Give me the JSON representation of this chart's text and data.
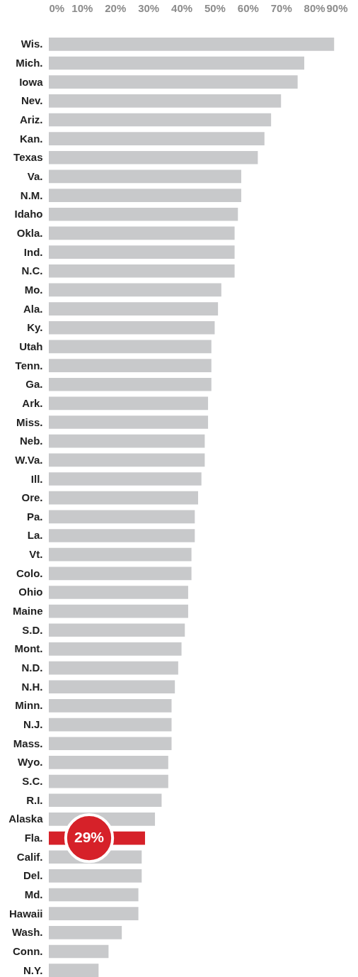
{
  "chart_data": {
    "type": "bar",
    "orientation": "horizontal",
    "categories": [
      "Wis.",
      "Mich.",
      "Iowa",
      "Nev.",
      "Ariz.",
      "Kan.",
      "Texas",
      "Va.",
      "N.M.",
      "Idaho",
      "Okla.",
      "Ind.",
      "N.C.",
      "Mo.",
      "Ala.",
      "Ky.",
      "Utah",
      "Tenn.",
      "Ga.",
      "Ark.",
      "Miss.",
      "Neb.",
      "W.Va.",
      "Ill.",
      "Ore.",
      "Pa.",
      "La.",
      "Vt.",
      "Colo.",
      "Ohio",
      "Maine",
      "S.D.",
      "Mont.",
      "N.D.",
      "N.H.",
      "Minn.",
      "N.J.",
      "Mass.",
      "Wyo.",
      "S.C.",
      "R.I.",
      "Alaska",
      "Fla.",
      "Calif.",
      "Del.",
      "Md.",
      "Hawaii",
      "Wash.",
      "Conn.",
      "N.Y."
    ],
    "values": [
      86,
      77,
      75,
      70,
      67,
      65,
      63,
      58,
      58,
      57,
      56,
      56,
      56,
      52,
      51,
      50,
      49,
      49,
      49,
      48,
      48,
      47,
      47,
      46,
      45,
      44,
      44,
      43,
      43,
      42,
      42,
      41,
      40,
      39,
      38,
      37,
      37,
      37,
      36,
      36,
      34,
      32,
      29,
      28,
      28,
      27,
      27,
      22,
      18,
      15
    ],
    "colors": [
      "#c8c9cb",
      "#c8c9cb",
      "#c8c9cb",
      "#c8c9cb",
      "#c8c9cb",
      "#c8c9cb",
      "#c8c9cb",
      "#c8c9cb",
      "#c8c9cb",
      "#c8c9cb",
      "#c8c9cb",
      "#c8c9cb",
      "#c8c9cb",
      "#c8c9cb",
      "#c8c9cb",
      "#c8c9cb",
      "#c8c9cb",
      "#c8c9cb",
      "#c8c9cb",
      "#c8c9cb",
      "#c8c9cb",
      "#c8c9cb",
      "#c8c9cb",
      "#c8c9cb",
      "#c8c9cb",
      "#c8c9cb",
      "#c8c9cb",
      "#c8c9cb",
      "#c8c9cb",
      "#c8c9cb",
      "#c8c9cb",
      "#c8c9cb",
      "#c8c9cb",
      "#c8c9cb",
      "#c8c9cb",
      "#c8c9cb",
      "#c8c9cb",
      "#c8c9cb",
      "#c8c9cb",
      "#c8c9cb",
      "#c8c9cb",
      "#c8c9cb",
      "#d62129",
      "#c8c9cb",
      "#c8c9cb",
      "#c8c9cb",
      "#c8c9cb",
      "#c8c9cb",
      "#c8c9cb",
      "#c8c9cb"
    ],
    "value_labels": [
      null,
      null,
      null,
      null,
      null,
      null,
      null,
      null,
      null,
      null,
      null,
      null,
      null,
      null,
      null,
      null,
      null,
      null,
      null,
      null,
      null,
      null,
      null,
      null,
      null,
      null,
      null,
      null,
      null,
      null,
      null,
      null,
      null,
      null,
      null,
      null,
      null,
      null,
      null,
      null,
      null,
      null,
      "29%",
      null,
      null,
      null,
      null,
      null,
      null,
      null
    ],
    "xlim": [
      0,
      90
    ],
    "xticks": [
      {
        "value": 0,
        "label": "0%"
      },
      {
        "value": 10,
        "label": "10%"
      },
      {
        "value": 20,
        "label": "20%"
      },
      {
        "value": 30,
        "label": "30%"
      },
      {
        "value": 40,
        "label": "40%"
      },
      {
        "value": 50,
        "label": "50%"
      },
      {
        "value": 60,
        "label": "60%"
      },
      {
        "value": 70,
        "label": "70%"
      },
      {
        "value": 80,
        "label": "80%"
      },
      {
        "value": 90,
        "label": "90%"
      }
    ]
  }
}
